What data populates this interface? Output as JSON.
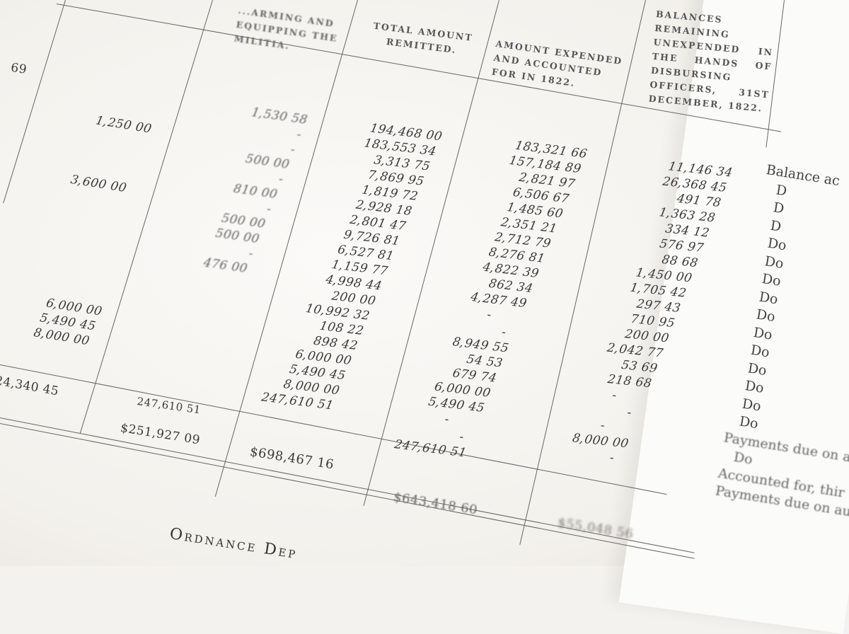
{
  "headers": {
    "militia": "...arming and equipping the militia.",
    "total_remitted": "Total amount remitted.",
    "expended": "Amount expended and accounted for in 1822.",
    "balances": "Balances remaining unexpended in the hands of disbursing officers, 31st December, 1822."
  },
  "columns": {
    "far_left": [
      "69"
    ],
    "far_left_total": "24,340 45",
    "second": [
      "1,250 00",
      "",
      "",
      "",
      "3,600 00"
    ],
    "second_lower": [
      "6,000 00",
      "5,490 45",
      "8,000 00"
    ],
    "second_total": "247,610 51",
    "second_grand_total": "$251,927 09",
    "militia": [
      "1,530 58",
      "-",
      "-",
      "500 00",
      "-",
      "810 00",
      "-",
      "500 00",
      "500 00",
      "-",
      "476 00"
    ],
    "total_remitted": [
      "194,468 00",
      "183,553 34",
      "3,313 75",
      "7,869 95",
      "1,819 72",
      "2,928 18",
      "2,801 47",
      "9,726 81",
      "6,527 81",
      "1,159 77",
      "4,998 44",
      "200 00",
      "10,992 32",
      "108 22",
      "898 42",
      "6,000 00",
      "5,490 45",
      "8,000 00",
      "247,610 51"
    ],
    "total_remitted_sum": "$698,467 16",
    "expended": [
      "183,321 66",
      "157,184 89",
      "2,821 97",
      "6,506 67",
      "1,485 60",
      "2,351 21",
      "2,712 79",
      "8,276 81",
      "4,822 39",
      "862 34",
      "4,287 49",
      "-       ",
      "-  ",
      "8,949 55",
      "54 53",
      "679 74",
      "6,000 00",
      "5,490 45",
      "-       ",
      "-  ",
      "247,610 51"
    ],
    "expended_sum": "$643,418 60",
    "balances": [
      "11,146 34",
      "26,368 45",
      "491 78",
      "1,363 28",
      "334 12",
      "576 97",
      "88 68",
      "1,450 00",
      "1,705 42",
      "297 43",
      "710 95",
      "200 00",
      "2,042 77",
      "53 69",
      "218 68",
      "-       ",
      "-  ",
      "-       ",
      "8,000 00",
      "-  "
    ],
    "balances_sum": "$55,048 56"
  },
  "right_page": {
    "lines": [
      "Balance ac",
      "   D",
      "   D",
      "   D",
      "   Do",
      "   Do",
      "   Do",
      "   Do",
      "   Do",
      "   Do",
      "   Do",
      "   Do",
      "   Do",
      "   Do",
      "   Do",
      "Payments due on a",
      "   Do",
      "Accounted for, thir",
      "Payments due on au"
    ]
  },
  "footer": {
    "title": "Ordnance Dep"
  }
}
